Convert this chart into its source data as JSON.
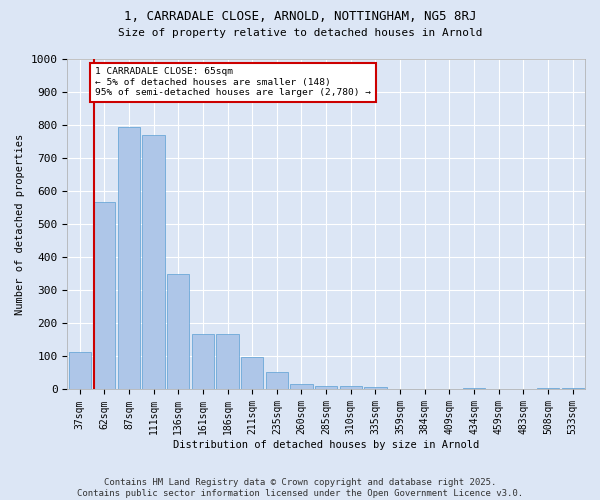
{
  "title1": "1, CARRADALE CLOSE, ARNOLD, NOTTINGHAM, NG5 8RJ",
  "title2": "Size of property relative to detached houses in Arnold",
  "xlabel": "Distribution of detached houses by size in Arnold",
  "ylabel": "Number of detached properties",
  "categories": [
    "37sqm",
    "62sqm",
    "87sqm",
    "111sqm",
    "136sqm",
    "161sqm",
    "186sqm",
    "211sqm",
    "235sqm",
    "260sqm",
    "285sqm",
    "310sqm",
    "335sqm",
    "359sqm",
    "384sqm",
    "409sqm",
    "434sqm",
    "459sqm",
    "483sqm",
    "508sqm",
    "533sqm"
  ],
  "values": [
    113,
    568,
    793,
    770,
    350,
    168,
    168,
    97,
    52,
    18,
    12,
    10,
    8,
    2,
    0,
    0,
    5,
    0,
    0,
    5,
    5
  ],
  "bar_color": "#aec6e8",
  "bar_edge_color": "#5a9fd4",
  "vline_color": "#cc0000",
  "annotation_text": "1 CARRADALE CLOSE: 65sqm\n← 5% of detached houses are smaller (148)\n95% of semi-detached houses are larger (2,780) →",
  "annotation_box_color": "#ffffff",
  "annotation_box_edge": "#cc0000",
  "ylim": [
    0,
    1000
  ],
  "yticks": [
    0,
    100,
    200,
    300,
    400,
    500,
    600,
    700,
    800,
    900,
    1000
  ],
  "footer": "Contains HM Land Registry data © Crown copyright and database right 2025.\nContains public sector information licensed under the Open Government Licence v3.0.",
  "bg_color": "#dce6f5",
  "plot_bg_color": "#dce6f5",
  "grid_color": "#ffffff",
  "title_fontsize": 9,
  "subtitle_fontsize": 8,
  "tick_fontsize": 7,
  "footer_fontsize": 6.5
}
